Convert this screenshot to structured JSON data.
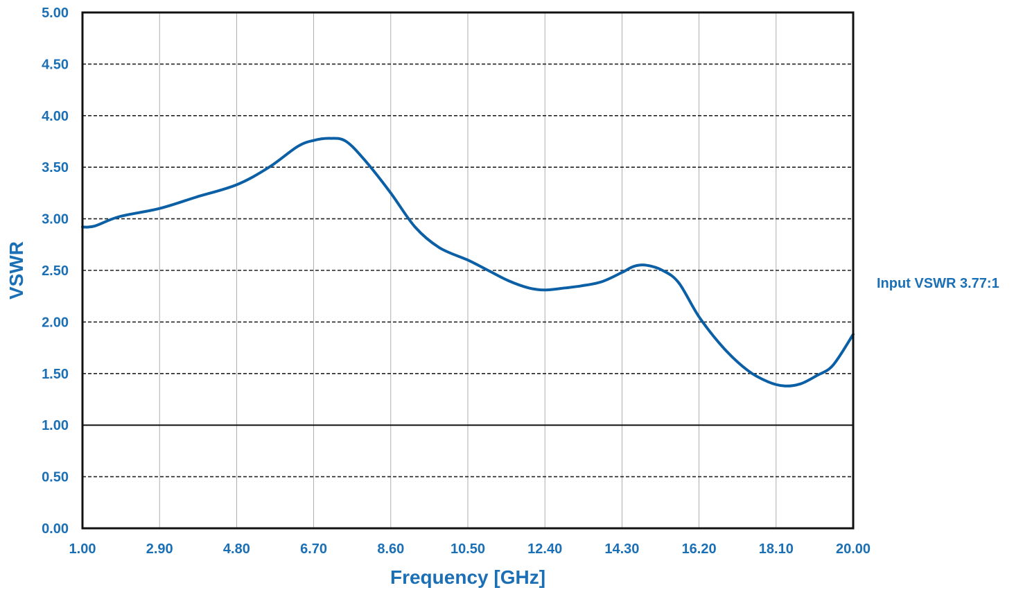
{
  "chart_data": {
    "type": "line",
    "title": "",
    "xlabel": "Frequency [GHz]",
    "ylabel": "VSWR",
    "xlim": [
      1.0,
      20.0
    ],
    "ylim": [
      0.0,
      5.0
    ],
    "x_ticks": [
      "1.00",
      "2.90",
      "4.80",
      "6.70",
      "8.60",
      "10.50",
      "12.40",
      "14.30",
      "16.20",
      "18.10",
      "20.00"
    ],
    "y_ticks": [
      "0.00",
      "0.50",
      "1.00",
      "1.50",
      "2.00",
      "2.50",
      "3.00",
      "3.50",
      "4.00",
      "4.50",
      "5.00"
    ],
    "grid": true,
    "reference_line_y": 1.0,
    "annotation": "Input VSWR 3.77:1",
    "colors": {
      "series": "#0b5fa5",
      "text": "#1a6fb5",
      "grid": "#222222",
      "frame": "#111111"
    },
    "series": [
      {
        "x": [
          1.0,
          1.3,
          1.9,
          2.9,
          3.8,
          4.8,
          5.6,
          6.3,
          6.7,
          7.1,
          7.5,
          8.0,
          8.6,
          9.2,
          9.8,
          10.5,
          11.0,
          11.5,
          12.0,
          12.4,
          12.9,
          13.3,
          13.8,
          14.3,
          14.6,
          14.9,
          15.3,
          15.7,
          16.2,
          16.8,
          17.4,
          17.9,
          18.3,
          18.7,
          19.1,
          19.5,
          20.0
        ],
        "y": [
          2.92,
          2.93,
          3.02,
          3.1,
          3.21,
          3.33,
          3.5,
          3.7,
          3.76,
          3.78,
          3.75,
          3.55,
          3.25,
          2.92,
          2.72,
          2.6,
          2.5,
          2.4,
          2.33,
          2.31,
          2.33,
          2.35,
          2.39,
          2.48,
          2.54,
          2.55,
          2.5,
          2.38,
          2.05,
          1.75,
          1.53,
          1.42,
          1.38,
          1.4,
          1.48,
          1.58,
          1.88
        ]
      }
    ]
  }
}
